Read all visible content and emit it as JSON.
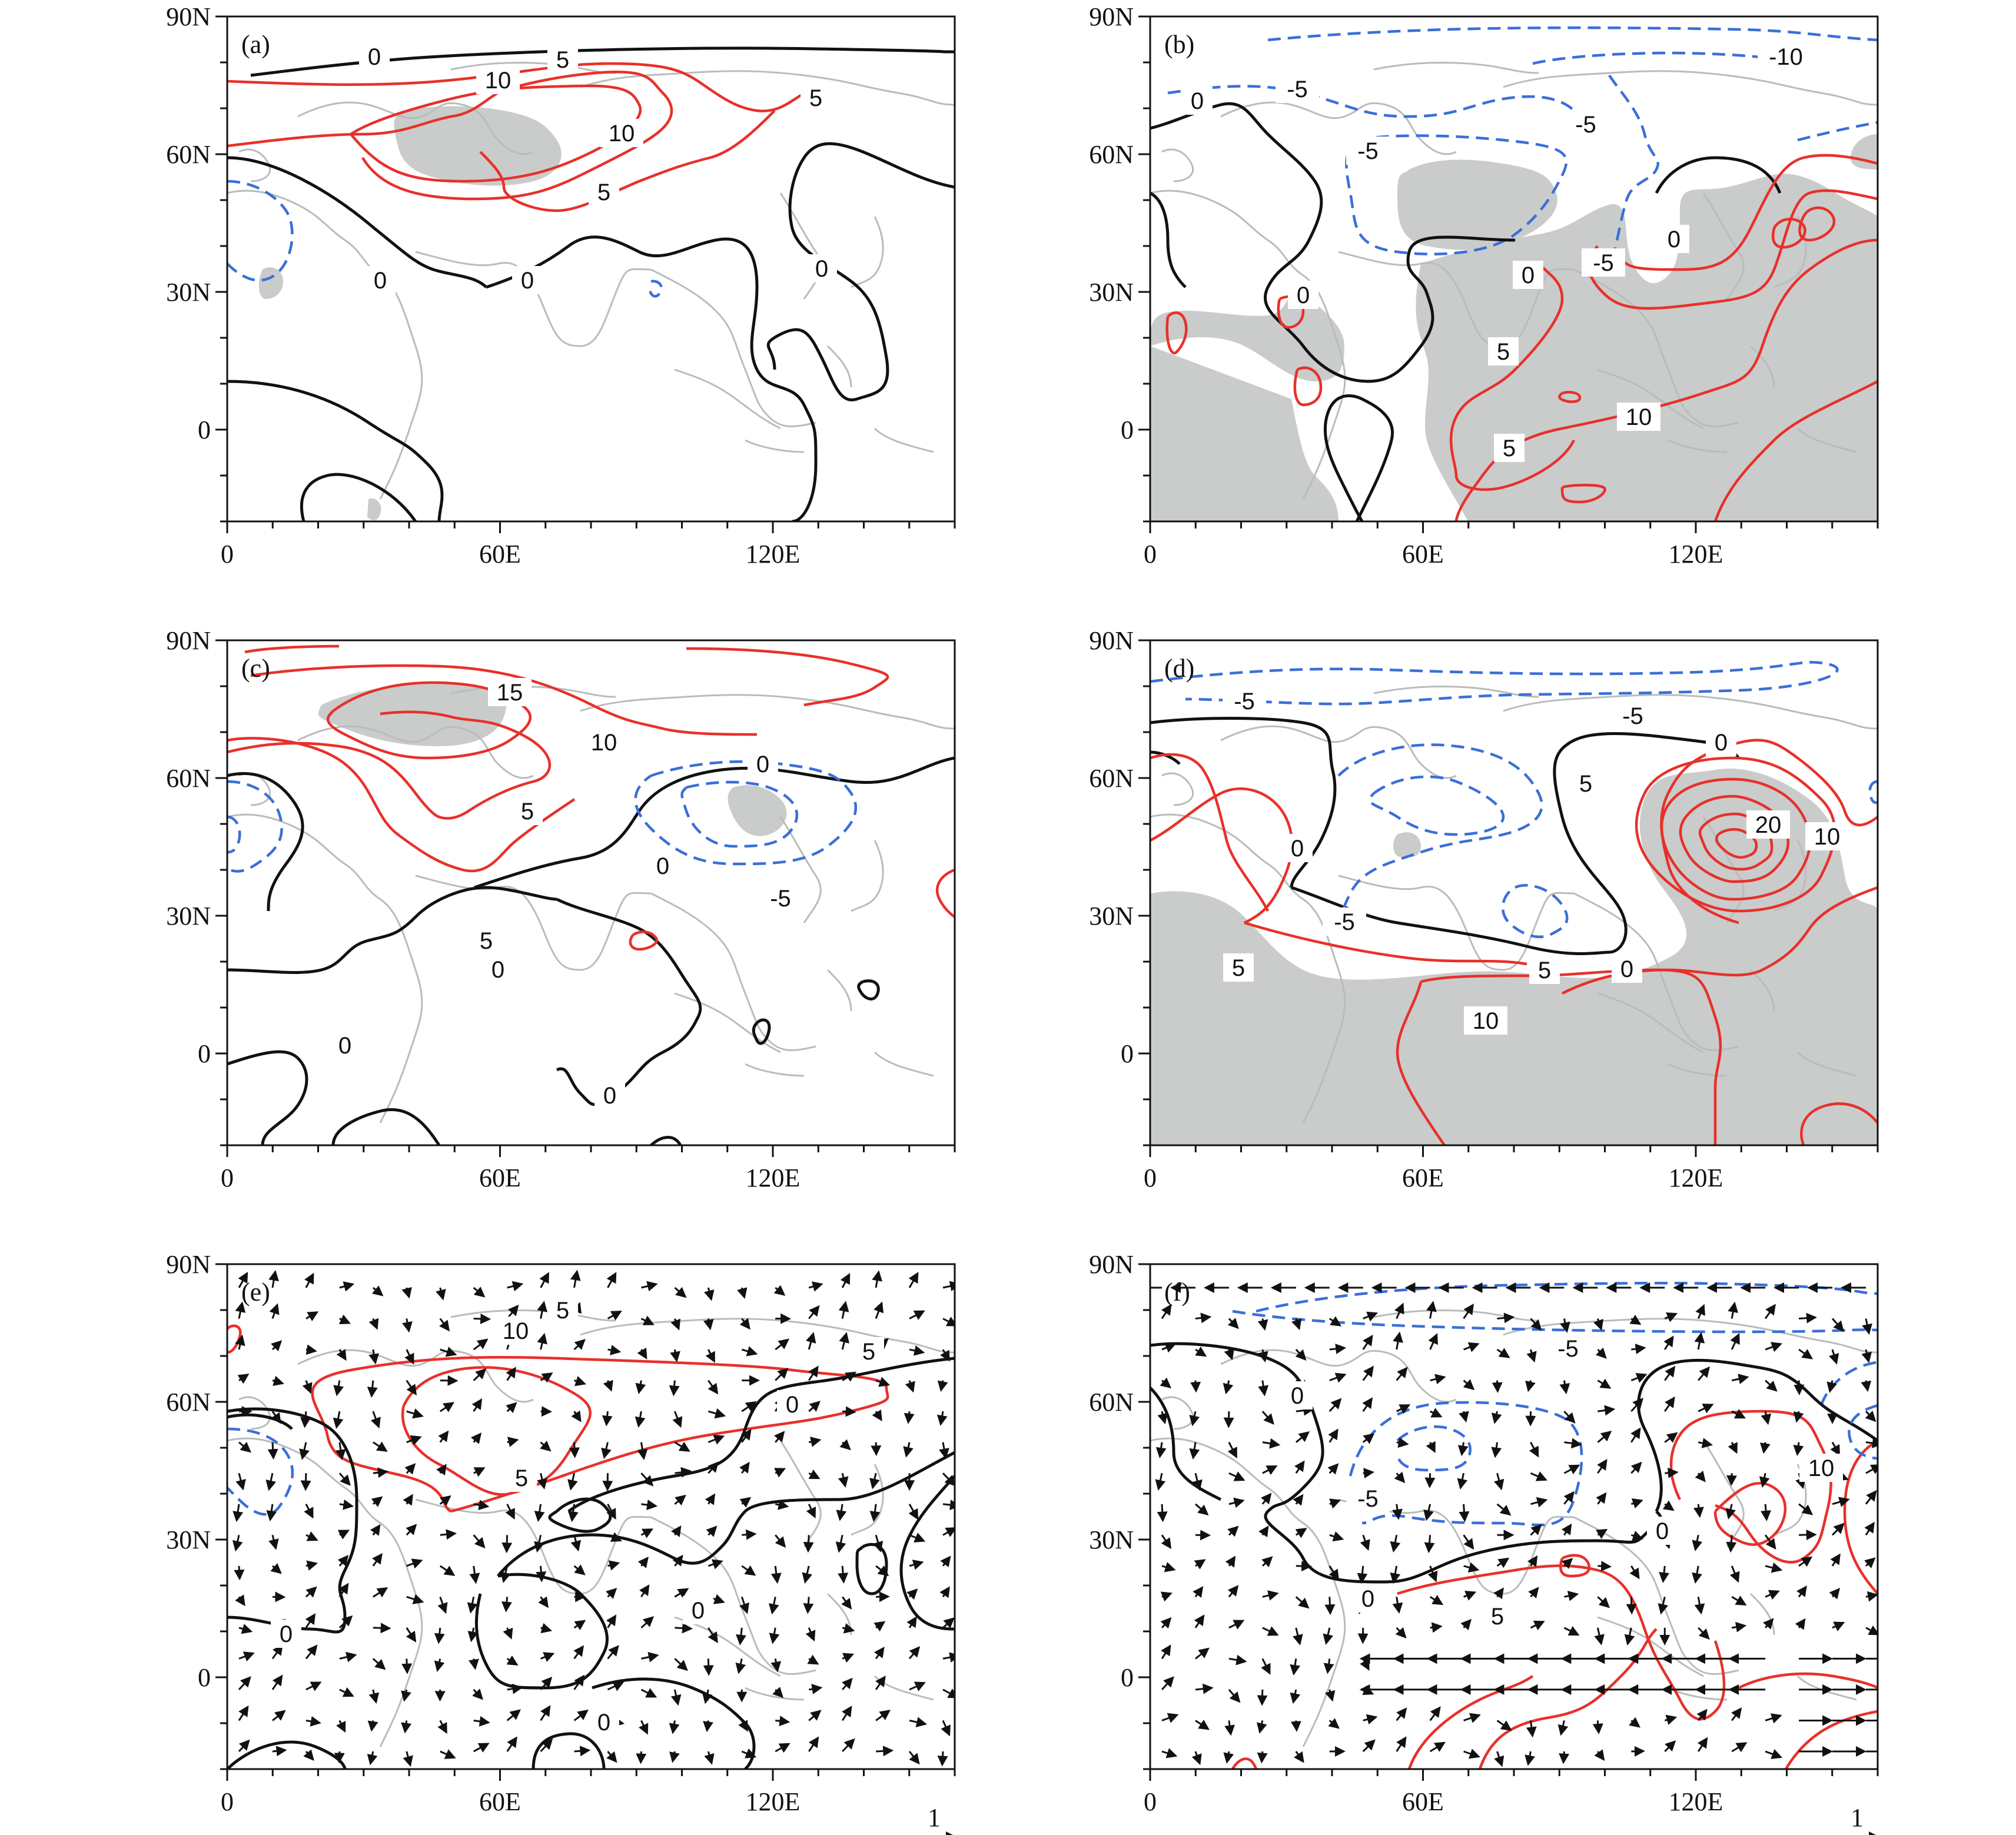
{
  "figure": {
    "panels": [
      {
        "label": "(a)",
        "y_ticks": [
          "90N",
          "60N",
          "30N",
          "0"
        ],
        "x_ticks": [
          "0",
          "60E",
          "120E"
        ],
        "contour_labels": [
          {
            "text": "0",
            "color": "#111111"
          },
          {
            "text": "5",
            "color": "#111111"
          },
          {
            "text": "10",
            "color": "#111111"
          },
          {
            "text": "10",
            "color": "#111111"
          },
          {
            "text": "5",
            "color": "#111111"
          },
          {
            "text": "5",
            "color": "#111111"
          },
          {
            "text": "0",
            "color": "#111111"
          },
          {
            "text": "0",
            "color": "#111111"
          },
          {
            "text": "0",
            "color": "#111111"
          }
        ],
        "vector_reference": ""
      },
      {
        "label": "(b)",
        "y_ticks": [
          "90N",
          "60N",
          "30N",
          "0"
        ],
        "x_ticks": [
          "0",
          "60E",
          "120E"
        ],
        "contour_labels": [
          {
            "text": "-10",
            "color": "#111111"
          },
          {
            "text": "-5",
            "color": "#111111"
          },
          {
            "text": "0",
            "color": "#111111"
          },
          {
            "text": "-5",
            "color": "#111111"
          },
          {
            "text": "-5",
            "color": "#111111"
          },
          {
            "text": "0",
            "color": "#111111"
          },
          {
            "text": "0",
            "color": "#111111"
          },
          {
            "text": "-5",
            "color": "#111111"
          },
          {
            "text": "0",
            "color": "#111111"
          },
          {
            "text": "5",
            "color": "#111111"
          },
          {
            "text": "10",
            "color": "#111111"
          },
          {
            "text": "5",
            "color": "#111111"
          }
        ],
        "vector_reference": ""
      },
      {
        "label": "(c)",
        "y_ticks": [
          "90N",
          "60N",
          "30N",
          "0"
        ],
        "x_ticks": [
          "0",
          "60E",
          "120E"
        ],
        "contour_labels": [
          {
            "text": "15",
            "color": "#111111"
          },
          {
            "text": "10",
            "color": "#111111"
          },
          {
            "text": "5",
            "color": "#111111"
          },
          {
            "text": "0",
            "color": "#111111"
          },
          {
            "text": "5",
            "color": "#111111"
          },
          {
            "text": "0",
            "color": "#111111"
          },
          {
            "text": "-5",
            "color": "#111111"
          },
          {
            "text": "0",
            "color": "#111111"
          },
          {
            "text": "0",
            "color": "#111111"
          },
          {
            "text": "0",
            "color": "#111111"
          }
        ],
        "vector_reference": ""
      },
      {
        "label": "(d)",
        "y_ticks": [
          "90N",
          "60N",
          "30N",
          "0"
        ],
        "x_ticks": [
          "0",
          "60E",
          "120E"
        ],
        "contour_labels": [
          {
            "text": "-5",
            "color": "#111111"
          },
          {
            "text": "-5",
            "color": "#111111"
          },
          {
            "text": "0",
            "color": "#111111"
          },
          {
            "text": "5",
            "color": "#111111"
          },
          {
            "text": "0",
            "color": "#111111"
          },
          {
            "text": "20",
            "color": "#111111"
          },
          {
            "text": "10",
            "color": "#111111"
          },
          {
            "text": "-5",
            "color": "#111111"
          },
          {
            "text": "5",
            "color": "#111111"
          },
          {
            "text": "5",
            "color": "#111111"
          },
          {
            "text": "0",
            "color": "#111111"
          },
          {
            "text": "10",
            "color": "#111111"
          }
        ],
        "vector_reference": ""
      },
      {
        "label": "(e)",
        "y_ticks": [
          "90N",
          "60N",
          "30N",
          "0"
        ],
        "x_ticks": [
          "0",
          "60E",
          "120E"
        ],
        "contour_labels": [
          {
            "text": "5",
            "color": "#111111"
          },
          {
            "text": "10",
            "color": "#111111"
          },
          {
            "text": "5",
            "color": "#111111"
          },
          {
            "text": "5",
            "color": "#111111"
          },
          {
            "text": "0",
            "color": "#111111"
          },
          {
            "text": "0",
            "color": "#111111"
          },
          {
            "text": "0",
            "color": "#111111"
          },
          {
            "text": "0",
            "color": "#111111"
          }
        ],
        "vector_reference": "1"
      },
      {
        "label": "(f)",
        "y_ticks": [
          "90N",
          "60N",
          "30N",
          "0"
        ],
        "x_ticks": [
          "0",
          "60E",
          "120E"
        ],
        "contour_labels": [
          {
            "text": "-5",
            "color": "#111111"
          },
          {
            "text": "0",
            "color": "#111111"
          },
          {
            "text": "-5",
            "color": "#111111"
          },
          {
            "text": "10",
            "color": "#111111"
          },
          {
            "text": "0",
            "color": "#111111"
          },
          {
            "text": "0",
            "color": "#111111"
          },
          {
            "text": "5",
            "color": "#111111"
          }
        ],
        "vector_reference": "1"
      }
    ],
    "colors": {
      "positive": "#e8302a",
      "negative": "#3a6fd8",
      "zero": "#111111",
      "shading": "#c9cccb",
      "coast": "#b9bcbc"
    }
  }
}
